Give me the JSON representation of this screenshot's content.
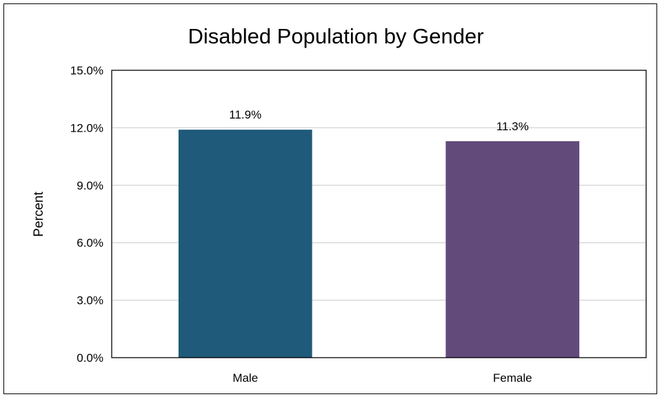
{
  "chart_data": {
    "type": "bar",
    "title": "Disabled Population by Gender",
    "xlabel": "",
    "ylabel": "Percent",
    "categories": [
      "Male",
      "Female"
    ],
    "values": [
      11.9,
      11.3
    ],
    "data_labels": [
      "11.9%",
      "11.3%"
    ],
    "bar_colors": [
      "#1f5a7a",
      "#624a7a"
    ],
    "ylim": [
      0,
      15
    ],
    "yticks": [
      0,
      3,
      6,
      9,
      12,
      15
    ],
    "ytick_labels": [
      "0.0%",
      "3.0%",
      "6.0%",
      "9.0%",
      "12.0%",
      "15.0%"
    ],
    "grid": true,
    "legend": "none"
  }
}
